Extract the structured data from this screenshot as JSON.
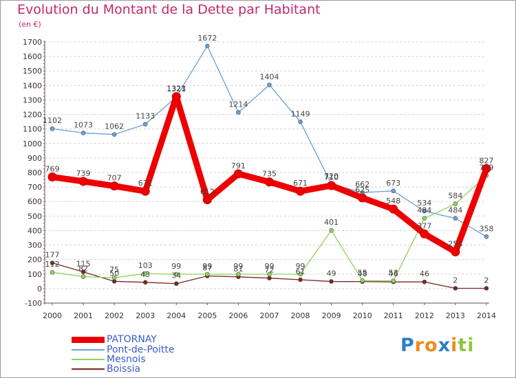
{
  "chart_data": {
    "type": "line",
    "title": "Evolution du Montant de la Dette par Habitant",
    "subtitle": "(en €)",
    "x": [
      "2000",
      "2001",
      "2002",
      "2003",
      "2004",
      "2005",
      "2006",
      "2007",
      "2008",
      "2009",
      "2010",
      "2011",
      "2012",
      "2013",
      "2014"
    ],
    "ylim": [
      -100,
      1700
    ],
    "yticks": [
      -100,
      0,
      100,
      200,
      300,
      400,
      500,
      600,
      700,
      800,
      900,
      1000,
      1100,
      1200,
      1300,
      1400,
      1500,
      1600,
      1700
    ],
    "grid": "horizontal dashed",
    "legend_position": "bottom-left",
    "series": [
      {
        "name": "PATORNAY",
        "color": "#ee0000",
        "values": [
          769,
          739,
          707,
          671,
          1323,
          612,
          791,
          735,
          671,
          710,
          625,
          548,
          377,
          253,
          827
        ],
        "labels": [
          "769",
          "739",
          "707",
          "671",
          "1323",
          "612",
          "791",
          "735",
          "671",
          "710",
          "625",
          "548",
          "377",
          "253",
          "827"
        ]
      },
      {
        "name": "Pont-de-Poitte",
        "color": "#6a9fd4",
        "values": [
          1102,
          1073,
          1062,
          1133,
          1321,
          1672,
          1214,
          1404,
          1149,
          720,
          662,
          673,
          534,
          484,
          358
        ],
        "labels": [
          "1102",
          "1073",
          "1062",
          "1133",
          "1321",
          "1672",
          "1214",
          "1404",
          "1149",
          "720",
          "662",
          "673",
          "534",
          "484",
          "358"
        ]
      },
      {
        "name": "Mesnois",
        "color": "#8fd35a",
        "values": [
          112,
          82,
          75,
          103,
          99,
          99,
          99,
          99,
          99,
          401,
          55,
          53,
          484,
          584,
          779
        ],
        "labels": [
          "112",
          "82",
          "75",
          "103",
          "99",
          "99",
          "99",
          "99",
          "99",
          "401",
          "55",
          "53",
          "484",
          "584",
          "779"
        ]
      },
      {
        "name": "Boissia",
        "color": "#7a2525",
        "values": [
          177,
          115,
          50,
          43,
          34,
          87,
          81,
          72,
          61,
          49,
          48,
          46,
          46,
          2,
          2
        ],
        "labels": [
          "177",
          "115",
          "50",
          "43",
          "34",
          "87",
          "81",
          "72",
          "61",
          "49",
          "48",
          "46",
          "46",
          "2",
          "2"
        ]
      }
    ]
  },
  "legend": {
    "items": [
      {
        "label": "PATORNAY",
        "color": "#ee0000"
      },
      {
        "label": "Pont-de-Poitte",
        "color": "#6a9fd4"
      },
      {
        "label": "Mesnois",
        "color": "#8fd35a"
      },
      {
        "label": "Boissia",
        "color": "#7a2525"
      }
    ]
  },
  "logo": {
    "text": "Proxiti",
    "letters": [
      "P",
      "r",
      "o",
      "x",
      "i",
      "t",
      "i"
    ],
    "colors": [
      "#2c7fc4",
      "#f08a1c",
      "#f08a1c",
      "#2c7fc4",
      "#f08a1c",
      "#8dc63f",
      "#8dc63f"
    ]
  }
}
